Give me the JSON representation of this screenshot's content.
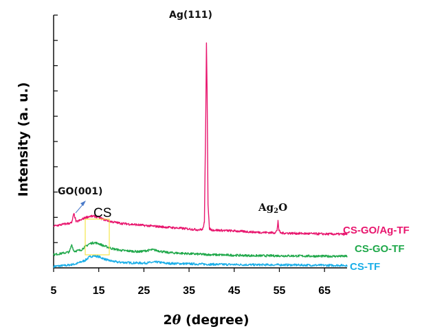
{
  "chart_data": {
    "type": "line",
    "xlabel_prefix": "2",
    "xlabel_theta": "θ",
    "xlabel_suffix": " (degree)",
    "ylabel": "Intensity (a. u.)",
    "xlim": [
      5,
      70
    ],
    "xticks": [
      5,
      15,
      25,
      35,
      45,
      55,
      65
    ],
    "ylim": [
      0,
      100
    ],
    "y_minor_ticks": 10,
    "series": [
      {
        "name": "CS-TF",
        "color": "#1aaee8",
        "points": [
          [
            5,
            0.6
          ],
          [
            8,
            1.0
          ],
          [
            10,
            1.6
          ],
          [
            12,
            3.0
          ],
          [
            13,
            4.4
          ],
          [
            14,
            4.8
          ],
          [
            15,
            4.4
          ],
          [
            16,
            3.7
          ],
          [
            17,
            3.0
          ],
          [
            19,
            2.3
          ],
          [
            22,
            2.0
          ],
          [
            25,
            1.9
          ],
          [
            28,
            2.3
          ],
          [
            30,
            1.8
          ],
          [
            35,
            1.6
          ],
          [
            40,
            1.4
          ],
          [
            45,
            1.3
          ],
          [
            50,
            1.2
          ],
          [
            55,
            1.2
          ],
          [
            60,
            1.1
          ],
          [
            65,
            1.0
          ],
          [
            70,
            1.0
          ]
        ]
      },
      {
        "name": "CS-GO-TF",
        "color": "#1fa84a",
        "points": [
          [
            5,
            5.2
          ],
          [
            7,
            5.8
          ],
          [
            8.5,
            6.3
          ],
          [
            9,
            9.2
          ],
          [
            9.5,
            6.6
          ],
          [
            11,
            7.0
          ],
          [
            12,
            8.4
          ],
          [
            13,
            9.6
          ],
          [
            14,
            10.0
          ],
          [
            15,
            9.6
          ],
          [
            16,
            8.8
          ],
          [
            18,
            7.6
          ],
          [
            20,
            6.9
          ],
          [
            24,
            6.4
          ],
          [
            27,
            7.2
          ],
          [
            30,
            6.1
          ],
          [
            35,
            5.6
          ],
          [
            40,
            5.2
          ],
          [
            45,
            5.0
          ],
          [
            50,
            4.8
          ],
          [
            55,
            4.8
          ],
          [
            60,
            4.7
          ],
          [
            65,
            4.6
          ],
          [
            70,
            4.6
          ]
        ]
      },
      {
        "name": "CS-GO/Ag-TF",
        "color": "#e8166e",
        "points": [
          [
            5,
            16.5
          ],
          [
            7,
            17.2
          ],
          [
            9,
            17.8
          ],
          [
            9.5,
            21.5
          ],
          [
            10,
            18.2
          ],
          [
            11,
            18.9
          ],
          [
            12,
            19.9
          ],
          [
            13,
            20.4
          ],
          [
            14,
            20.4
          ],
          [
            15,
            20.0
          ],
          [
            16,
            19.2
          ],
          [
            18,
            18.2
          ],
          [
            20,
            17.6
          ],
          [
            25,
            16.8
          ],
          [
            30,
            16.1
          ],
          [
            35,
            15.4
          ],
          [
            37,
            15.1
          ],
          [
            38,
            15.2
          ],
          [
            38.4,
            18.0
          ],
          [
            38.7,
            60.0
          ],
          [
            38.85,
            89.0
          ],
          [
            39.0,
            70.0
          ],
          [
            39.2,
            25.0
          ],
          [
            39.5,
            15.6
          ],
          [
            40,
            15.0
          ],
          [
            45,
            14.6
          ],
          [
            50,
            14.1
          ],
          [
            54,
            13.9
          ],
          [
            54.5,
            14.8
          ],
          [
            54.7,
            18.8
          ],
          [
            54.9,
            14.8
          ],
          [
            55.3,
            13.8
          ],
          [
            60,
            13.6
          ],
          [
            65,
            13.4
          ],
          [
            70,
            13.3
          ]
        ]
      }
    ],
    "annotations": {
      "ag111": "Ag(111)",
      "ag2o_main": "Ag",
      "ag2o_sub": "2",
      "ag2o_tail": "O",
      "go001": "GO(001)",
      "cs": "CS"
    },
    "legend_placement": "right, labels beside curve ends"
  },
  "colors": {
    "highlight_box": "#f5e64a",
    "arrow": "#4a7ac9"
  }
}
